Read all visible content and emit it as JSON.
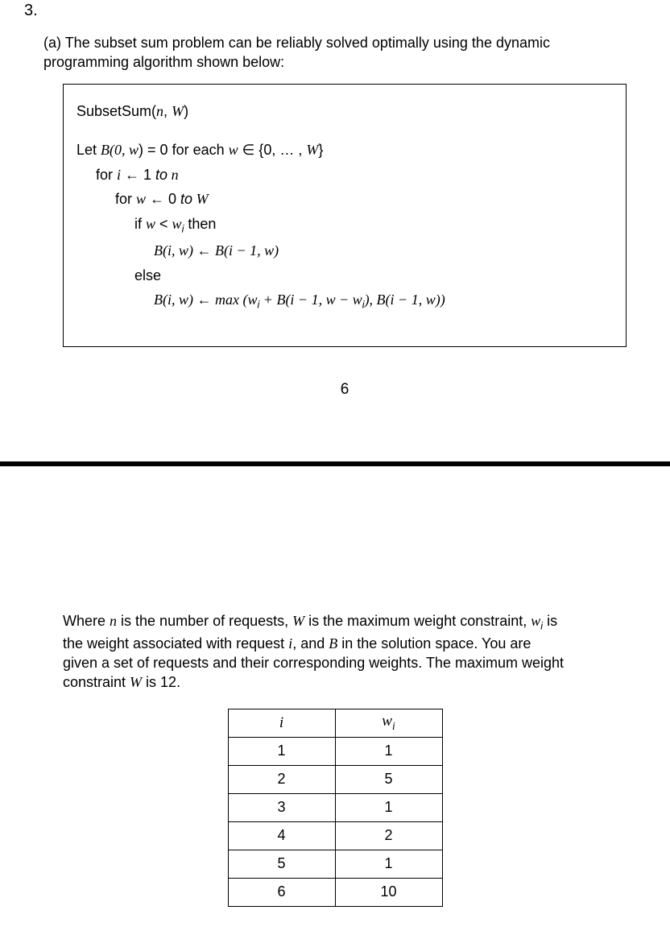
{
  "question_number": "3.",
  "part_label": "(a)",
  "intro_text_1": "The subset sum problem can be reliably solved optimally using the dynamic",
  "intro_text_2": "programming algorithm shown below:",
  "algorithm": {
    "title_fn": "SubsetSum(",
    "title_args_n": "n",
    "title_args_sep": ", ",
    "title_args_W": "W",
    "title_close": ")",
    "line_let_1": "Let ",
    "line_let_B": "B",
    "line_let_paren": "(0, ",
    "line_let_w": "w",
    "line_let_eq": ")  =  0 for each ",
    "line_let_w2": "w",
    "line_let_in": " ∈ {0, … , ",
    "line_let_W": "W",
    "line_let_end": "}",
    "line_for1_a": "for ",
    "line_for1_i": "i",
    "line_for1_b": " ← 1 ",
    "line_for1_to": "to",
    "line_for1_n": " n",
    "line_for2_a": "for ",
    "line_for2_w": "w",
    "line_for2_b": " ← 0 ",
    "line_for2_to": "to",
    "line_for2_W": " W",
    "line_if_a": "if ",
    "line_if_w": "w",
    "line_if_lt": " < ",
    "line_if_wi": "w",
    "line_if_sub": "i",
    "line_if_then": " then",
    "line_rec1_B": "B",
    "line_rec1_args": "(i, w) ← B(i − 1, w)",
    "line_else": "else",
    "line_rec2_B": "B",
    "line_rec2_a": "(i, w) ← max (w",
    "line_rec2_sub1": "i",
    "line_rec2_b": " + B(i − 1, w − w",
    "line_rec2_sub2": "i",
    "line_rec2_c": "), B(i − 1, w))"
  },
  "page_number": "6",
  "explanation": {
    "l1a": "Where ",
    "l1n": "n",
    "l1b": " is the number of requests, ",
    "l1W": "W",
    "l1c": " is the maximum weight constraint, ",
    "l1wi": "w",
    "l1sub": "i",
    "l1d": " is",
    "l2a": "the weight associated with request ",
    "l2i": "i",
    "l2b": ", and ",
    "l2B": "B",
    "l2c": " in the solution space. You are",
    "l3": "given a set of requests and their corresponding weights. The maximum weight",
    "l4a": "constraint ",
    "l4W": "W",
    "l4b": " is 12."
  },
  "table": {
    "header_i": "i",
    "header_w": "w",
    "header_w_sub": "i",
    "rows": [
      {
        "i": "1",
        "w": "1"
      },
      {
        "i": "2",
        "w": "5"
      },
      {
        "i": "3",
        "w": "1"
      },
      {
        "i": "4",
        "w": "2"
      },
      {
        "i": "5",
        "w": "1"
      },
      {
        "i": "6",
        "w": "10"
      }
    ]
  },
  "colors": {
    "text": "#000000",
    "background": "#ffffff",
    "border": "#000000",
    "divider": "#000000"
  }
}
